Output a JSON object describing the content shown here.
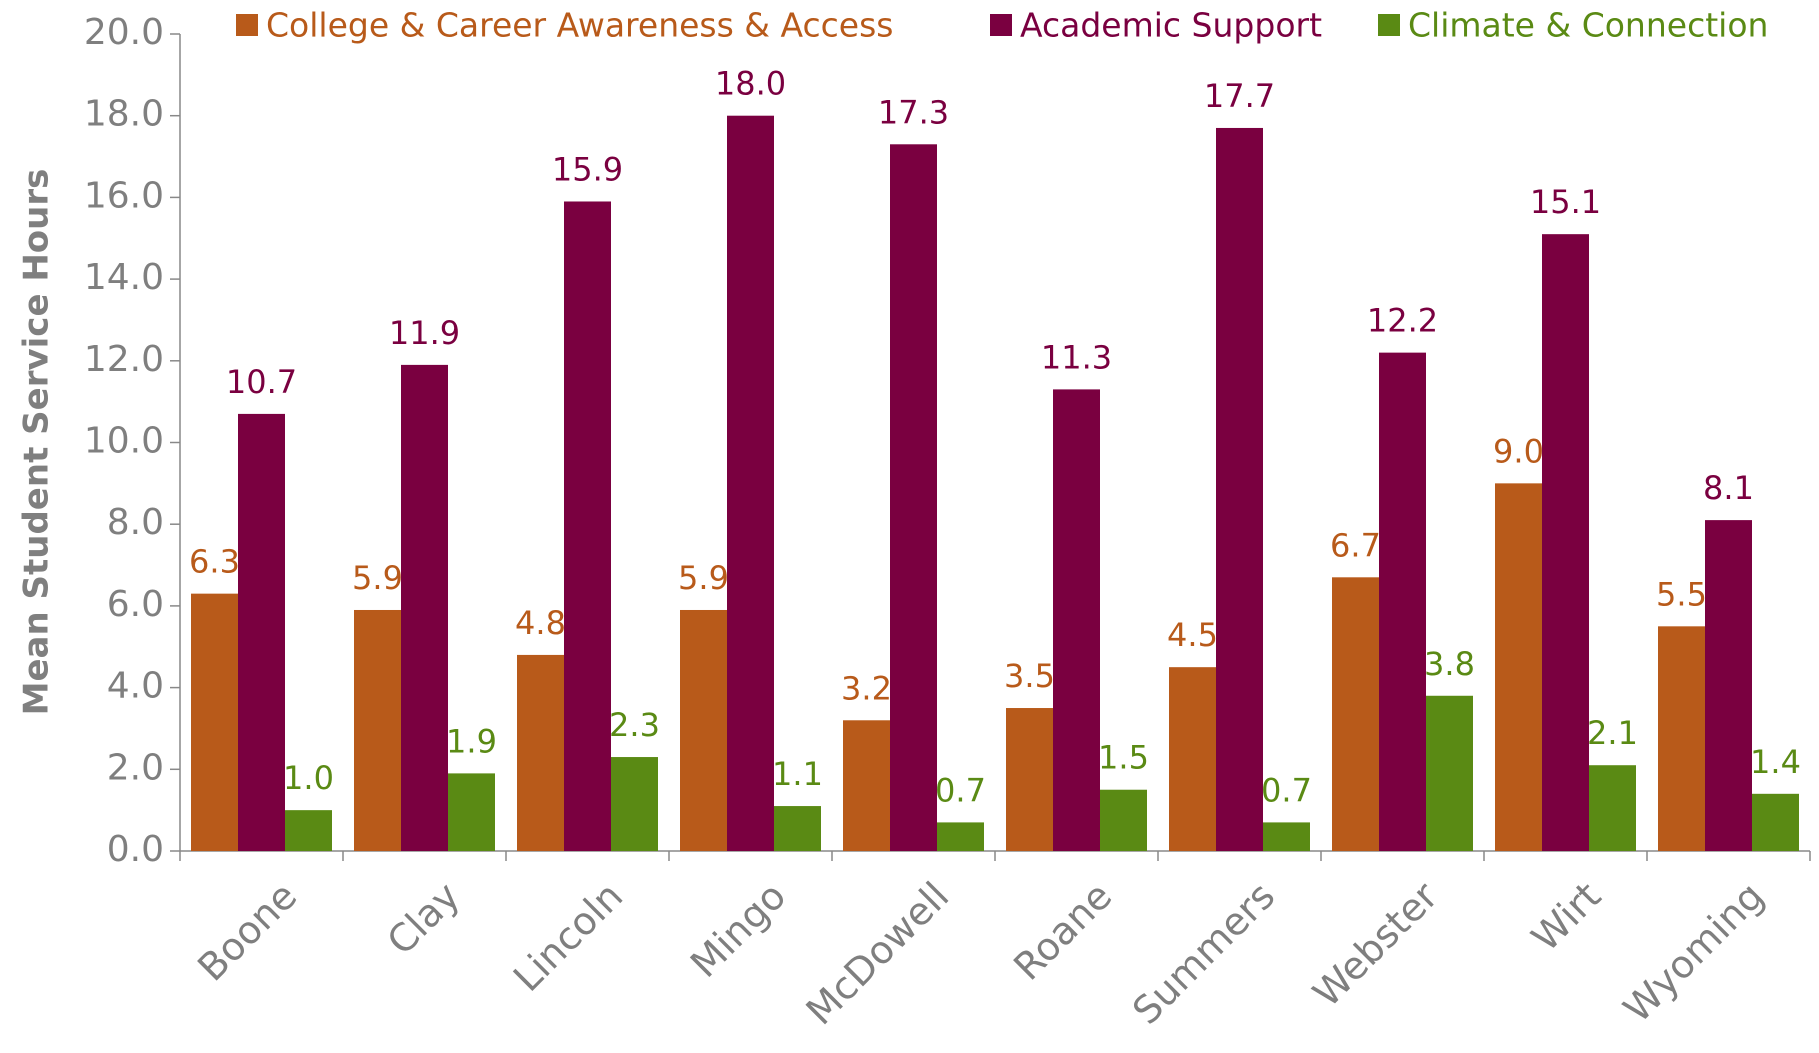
{
  "chart_data": {
    "type": "bar",
    "y_label": "Mean Student Service Hours",
    "categories": [
      "Boone",
      "Clay",
      "Lincoln",
      "Mingo",
      "McDowell",
      "Roane",
      "Summers",
      "Webster",
      "Wirt",
      "Wyoming"
    ],
    "series": [
      {
        "name": "College & Career Awareness & Access",
        "color": "#b85a1a",
        "values": [
          6.3,
          5.9,
          4.8,
          5.9,
          3.2,
          3.5,
          4.5,
          6.7,
          9.0,
          5.5
        ],
        "value_labels": [
          "6.3",
          "5.9",
          "4.8",
          "5.9",
          "3.2",
          "3.5",
          "4.5",
          "6.7",
          "9.0",
          "5.5"
        ]
      },
      {
        "name": "Academic Support",
        "color": "#7a0040",
        "values": [
          10.7,
          11.9,
          15.9,
          18.0,
          17.3,
          11.3,
          17.7,
          12.2,
          15.1,
          8.1
        ],
        "value_labels": [
          "10.7",
          "11.9",
          "15.9",
          "18.0",
          "17.3",
          "11.3",
          "17.7",
          "12.2",
          "15.1",
          "8.1"
        ]
      },
      {
        "name": "Climate & Connection",
        "color": "#5a8a14",
        "values": [
          1.0,
          1.9,
          2.3,
          1.1,
          0.7,
          1.5,
          0.7,
          3.8,
          2.1,
          1.4
        ],
        "value_labels": [
          "1.0",
          "1.9",
          "2.3",
          "1.1",
          "0.7",
          "1.5",
          "0.7",
          "3.8",
          "2.1",
          "1.4"
        ]
      }
    ],
    "ylim": [
      0,
      20
    ],
    "yticks": [
      {
        "value": 0,
        "label": "0.0"
      },
      {
        "value": 2,
        "label": "2.0"
      },
      {
        "value": 4,
        "label": "4.0"
      },
      {
        "value": 6,
        "label": "6.0"
      },
      {
        "value": 8,
        "label": "8.0"
      },
      {
        "value": 10,
        "label": "10.0"
      },
      {
        "value": 12,
        "label": "12.0"
      },
      {
        "value": 14,
        "label": "14.0"
      },
      {
        "value": 16,
        "label": "16.0"
      },
      {
        "value": 18,
        "label": "18.0"
      },
      {
        "value": 20,
        "label": "20.0"
      }
    ],
    "grid": false,
    "legend": "top"
  }
}
